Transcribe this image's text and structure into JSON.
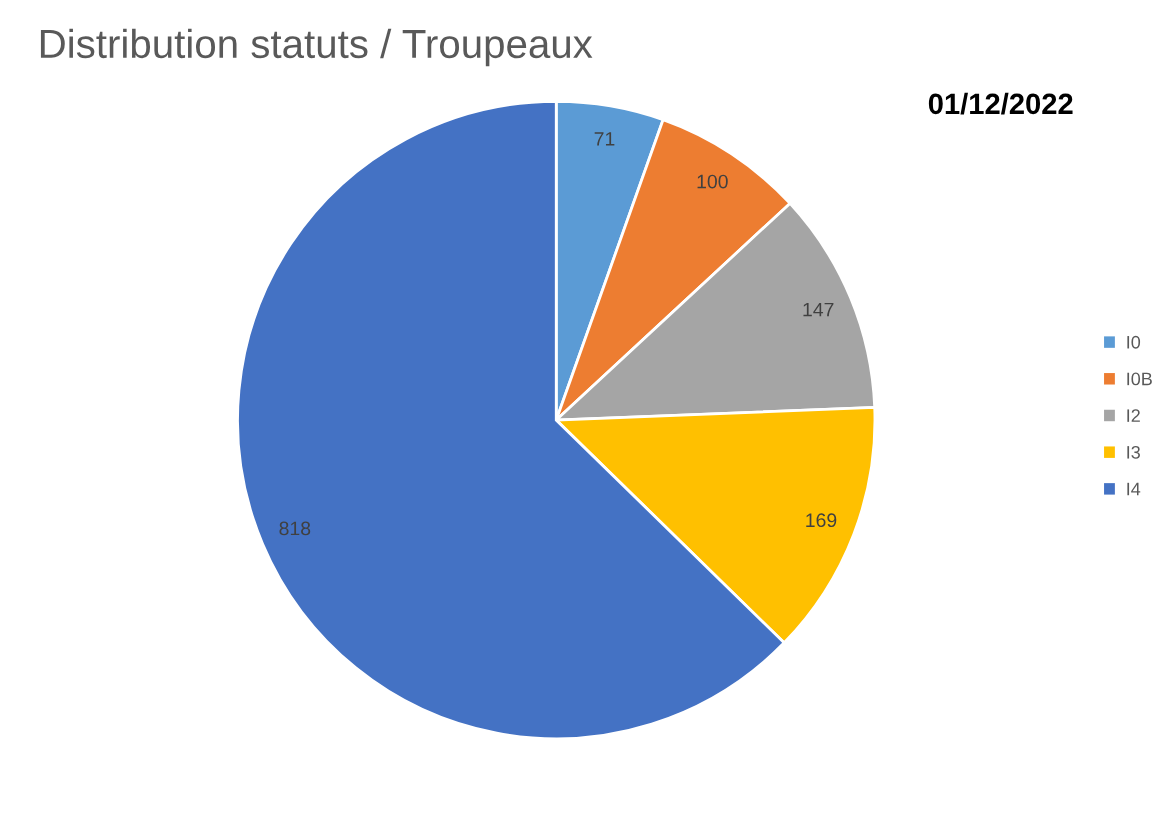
{
  "chart_data": {
    "type": "pie",
    "title": "Distribution statuts / Troupeaux",
    "annotations": [
      "01/12/2022"
    ],
    "categories": [
      "I0",
      "I0B",
      "I2",
      "I3",
      "I4"
    ],
    "values": [
      71,
      100,
      147,
      169,
      818
    ],
    "colors": [
      "#5b9bd5",
      "#ed7d31",
      "#a5a5a5",
      "#ffc000",
      "#4472c4"
    ],
    "data_labels": true,
    "legend": "right"
  }
}
